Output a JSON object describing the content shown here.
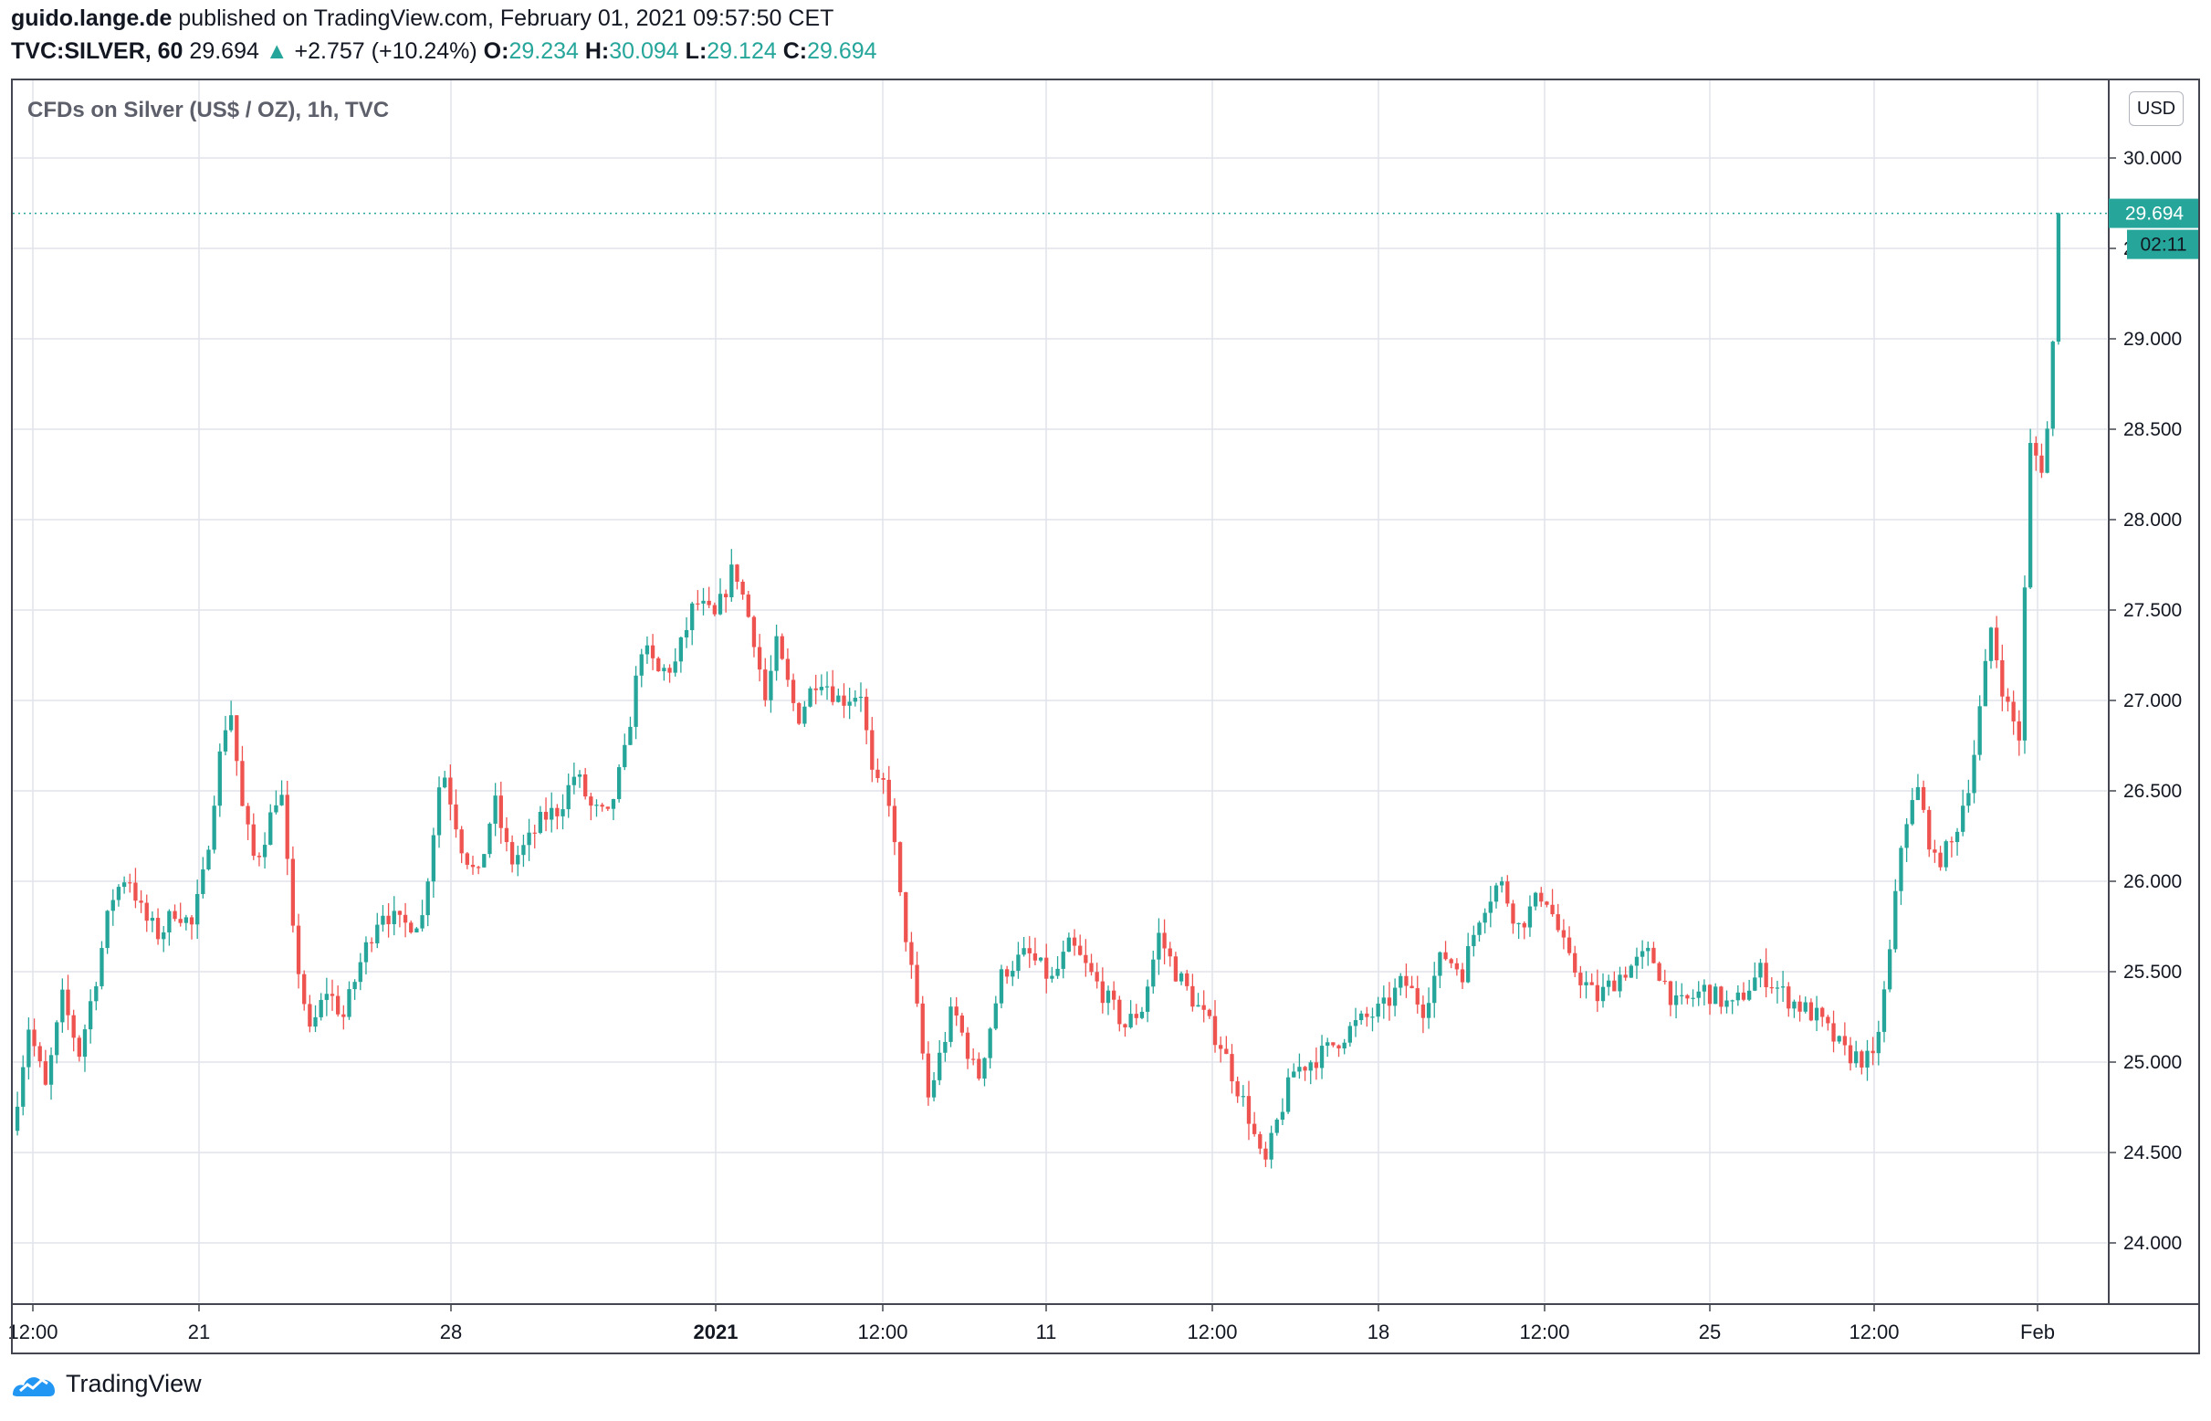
{
  "header": {
    "author": "guido.lange.de",
    "published": "published on TradingView.com, February 01, 2021 09:57:50 CET",
    "symbol": "TVC:SILVER, 60",
    "last": "29.694",
    "change_arrow": "▲",
    "change": "+2.757 (+10.24%)",
    "o_label": "O:",
    "o": "29.234",
    "h_label": "H:",
    "h": "30.094",
    "l_label": "L:",
    "l": "29.124",
    "c_label": "C:",
    "c": "29.694"
  },
  "chart_title": "CFDs on Silver (US$ / OZ), 1h, TVC",
  "currency_button": "USD",
  "price_badge": "29.694",
  "countdown_badge": "02:11",
  "footer": {
    "brand": "TradingView",
    "logo_icon": "tradingview-logo-icon"
  },
  "colors": {
    "up": "#26a69a",
    "down": "#ef5350",
    "grid": "#e0e3eb",
    "axis": "#434651"
  },
  "chart_data": {
    "type": "candlestick",
    "title": "CFDs on Silver (US$ / OZ), 1h, TVC",
    "ylim": [
      23.6,
      30.4
    ],
    "y_ticks": [
      "24.000",
      "24.500",
      "25.000",
      "25.500",
      "26.000",
      "26.500",
      "27.000",
      "27.500",
      "28.000",
      "28.500",
      "29.000",
      "29.500",
      "30.000"
    ],
    "x_ticks": [
      "12:00",
      "21",
      "28",
      "2021",
      "12:00",
      "11",
      "12:00",
      "18",
      "12:00",
      "25",
      "12:00",
      "Feb"
    ],
    "x_ticks_bold": [
      "2021"
    ],
    "last_price": 29.694,
    "segments": [
      {
        "n": 12,
        "pts": [
          24.62,
          25.2,
          24.85,
          25.35,
          25.05
        ]
      },
      {
        "n": 20,
        "pts": [
          25.05,
          25.45,
          25.9,
          26.05,
          25.8,
          25.7,
          25.85,
          25.75
        ]
      },
      {
        "n": 9,
        "pts": [
          25.75,
          26.05,
          26.6,
          27.0,
          26.4
        ]
      },
      {
        "n": 9,
        "pts": [
          26.4,
          26.1,
          26.3,
          26.55,
          25.7
        ]
      },
      {
        "n": 12,
        "pts": [
          25.7,
          25.15,
          25.4,
          25.25,
          25.55
        ]
      },
      {
        "n": 11,
        "pts": [
          25.55,
          25.85,
          25.75,
          25.8
        ]
      },
      {
        "n": 7,
        "pts": [
          25.8,
          26.65,
          26.2
        ]
      },
      {
        "n": 26,
        "pts": [
          26.2,
          26.0,
          26.45,
          26.1,
          26.2,
          26.35,
          26.4,
          26.6,
          26.4,
          26.35
        ]
      },
      {
        "n": 12,
        "pts": [
          26.35,
          26.7,
          27.3,
          27.15,
          27.2
        ]
      },
      {
        "n": 14,
        "pts": [
          27.2,
          27.55,
          27.45,
          27.75,
          27.35
        ]
      },
      {
        "n": 4,
        "pts": [
          27.35,
          27.0,
          27.3
        ]
      },
      {
        "n": 15,
        "pts": [
          27.3,
          26.9,
          27.15,
          27.0,
          27.05
        ]
      },
      {
        "n": 7,
        "pts": [
          27.05,
          26.5,
          26.55,
          25.9
        ]
      },
      {
        "n": 5,
        "pts": [
          25.9,
          25.4,
          24.8
        ]
      },
      {
        "n": 22,
        "pts": [
          24.8,
          25.3,
          24.9,
          25.5,
          25.6,
          25.45
        ]
      },
      {
        "n": 13,
        "pts": [
          25.45,
          25.65,
          25.5,
          25.35,
          25.2
        ]
      },
      {
        "n": 12,
        "pts": [
          25.2,
          25.3,
          25.7,
          25.5,
          25.35
        ]
      },
      {
        "n": 10,
        "pts": [
          25.35,
          25.1,
          24.7
        ]
      },
      {
        "n": 8,
        "pts": [
          24.7,
          24.4,
          24.7,
          24.95
        ]
      },
      {
        "n": 16,
        "pts": [
          24.95,
          25.05,
          25.2,
          25.3
        ]
      },
      {
        "n": 14,
        "pts": [
          25.3,
          25.45,
          25.3,
          25.6,
          25.5
        ]
      },
      {
        "n": 10,
        "pts": [
          25.5,
          25.85,
          26.0,
          25.75
        ]
      },
      {
        "n": 9,
        "pts": [
          25.75,
          25.95,
          25.55
        ]
      },
      {
        "n": 24,
        "pts": [
          25.55,
          25.35,
          25.5,
          25.6,
          25.3,
          25.4
        ]
      },
      {
        "n": 20,
        "pts": [
          25.4,
          25.3,
          25.5,
          25.35,
          25.25
        ]
      },
      {
        "n": 10,
        "pts": [
          25.25,
          25.05,
          25.0
        ]
      },
      {
        "n": 8,
        "pts": [
          25.0,
          25.5,
          26.3,
          26.5
        ]
      },
      {
        "n": 6,
        "pts": [
          26.5,
          26.1,
          26.2
        ]
      },
      {
        "n": 7,
        "pts": [
          26.2,
          26.6,
          27.4
        ]
      },
      {
        "n": 5,
        "pts": [
          27.4,
          27.0,
          26.8
        ]
      },
      {
        "n": 4,
        "pts": [
          26.8,
          28.4,
          28.3
        ]
      },
      {
        "n": 3,
        "pts": [
          28.3,
          28.6,
          29.694
        ]
      }
    ]
  }
}
